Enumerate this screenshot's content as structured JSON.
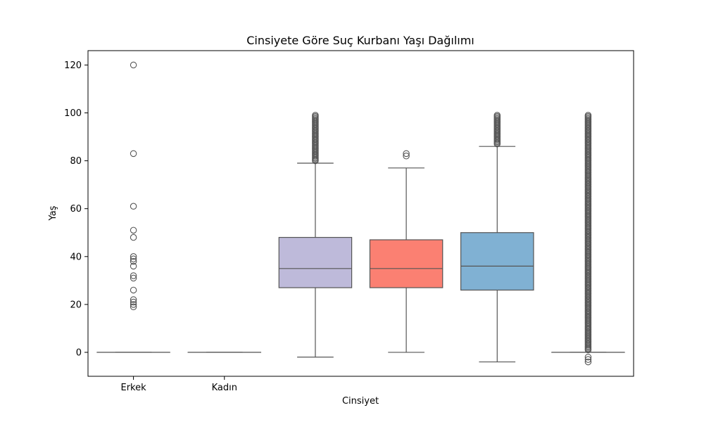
{
  "chart_data": {
    "type": "box",
    "title": "Cinsiyete Göre Suç Kurbanı Yaşı Dağılımı",
    "xlabel": "Cinsiyet",
    "ylabel": "Yaş",
    "ylim": [
      -10,
      126
    ],
    "yticks": [
      0,
      20,
      40,
      60,
      80,
      100,
      120
    ],
    "categories": [
      "Erkek",
      "Kadın",
      "",
      "",
      "",
      ""
    ],
    "grid": false,
    "boxes": [
      {
        "color": "#8dd3c7",
        "whislo": 0,
        "q1": 0,
        "med": 0,
        "q3": 0,
        "whishi": 0,
        "fliers": [
          19,
          20,
          21,
          22,
          26,
          31,
          32,
          36,
          38,
          39,
          40,
          48,
          51,
          61,
          83,
          120
        ]
      },
      {
        "color": "#ffffb3",
        "whislo": 0,
        "q1": 0,
        "med": 0,
        "q3": 0,
        "whishi": 0,
        "fliers": []
      },
      {
        "color": "#bebada",
        "whislo": -2,
        "q1": 27,
        "med": 35,
        "q3": 48,
        "whishi": 79,
        "flier_range": [
          80,
          99
        ],
        "fliers": []
      },
      {
        "color": "#fb8072",
        "whislo": 0,
        "q1": 27,
        "med": 35,
        "q3": 47,
        "whishi": 77,
        "fliers": [
          82,
          83
        ]
      },
      {
        "color": "#80b1d3",
        "whislo": -4,
        "q1": 26,
        "med": 36,
        "q3": 50,
        "whishi": 86,
        "flier_range": [
          87,
          99
        ],
        "fliers": []
      },
      {
        "color": "#fdb462",
        "whislo": 0,
        "q1": 0,
        "med": 0,
        "q3": 0,
        "whishi": 0,
        "flier_range": [
          1,
          99
        ],
        "fliers": [
          -4,
          -3,
          -2
        ]
      }
    ]
  }
}
